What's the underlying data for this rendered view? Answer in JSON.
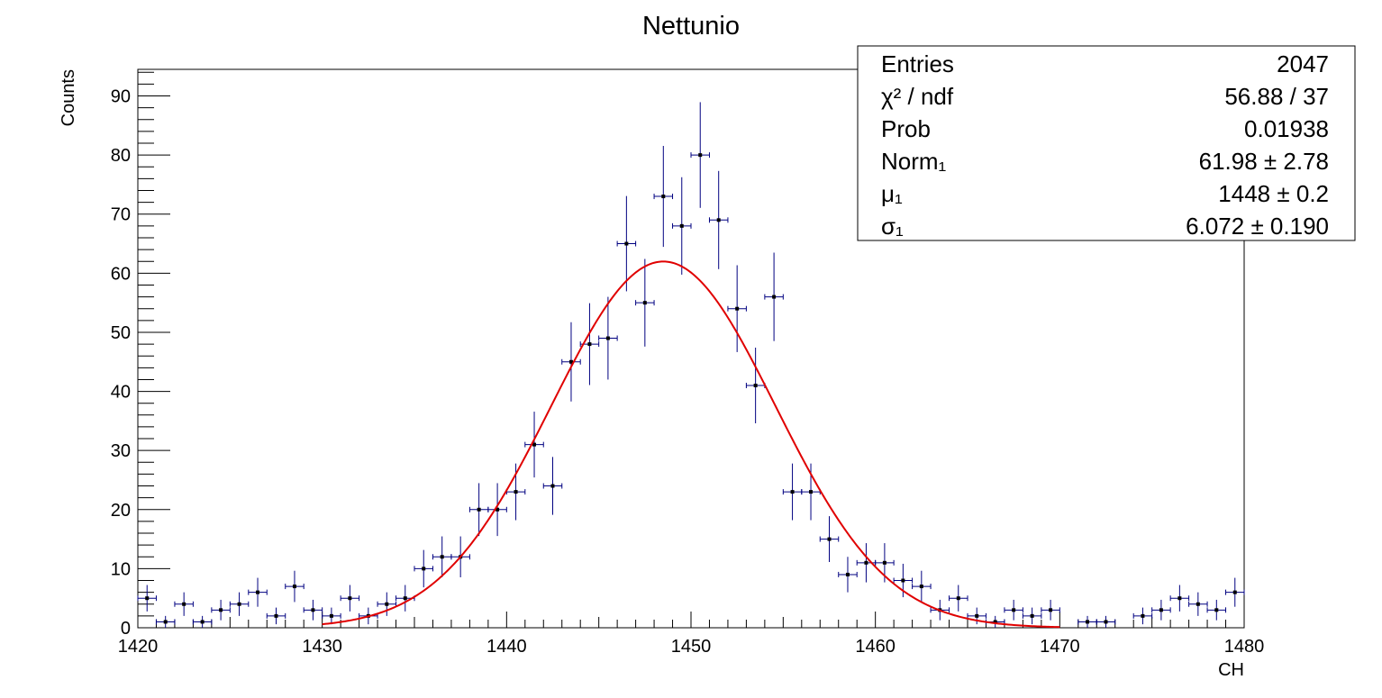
{
  "chart_data": {
    "type": "scatter",
    "title": "Nettunio",
    "xlabel": "CH",
    "ylabel": "Counts",
    "xlim": [
      1420,
      1480
    ],
    "ylim": [
      0,
      94.5
    ],
    "x_ticks": [
      1420,
      1430,
      1440,
      1450,
      1460,
      1470,
      1480
    ],
    "y_ticks": [
      0,
      10,
      20,
      30,
      40,
      50,
      60,
      70,
      80,
      90
    ],
    "x_ticks_labels": [
      "1420",
      "1430",
      "1440",
      "1450",
      "1460",
      "1470",
      "1480"
    ],
    "y_ticks_labels": [
      "0",
      "10",
      "20",
      "30",
      "40",
      "50",
      "60",
      "70",
      "80",
      "90"
    ],
    "bin_width": 1,
    "series": [
      {
        "kind": "histogram-points-with-errors",
        "color": "#000080",
        "x": [
          1420.5,
          1421.5,
          1422.5,
          1423.5,
          1424.5,
          1425.5,
          1426.5,
          1427.5,
          1428.5,
          1429.5,
          1430.5,
          1431.5,
          1432.5,
          1433.5,
          1434.5,
          1435.5,
          1436.5,
          1437.5,
          1438.5,
          1439.5,
          1440.5,
          1441.5,
          1442.5,
          1443.5,
          1444.5,
          1445.5,
          1446.5,
          1447.5,
          1448.5,
          1449.5,
          1450.5,
          1451.5,
          1452.5,
          1453.5,
          1454.5,
          1455.5,
          1456.5,
          1457.5,
          1458.5,
          1459.5,
          1460.5,
          1461.5,
          1462.5,
          1463.5,
          1464.5,
          1465.5,
          1466.5,
          1467.5,
          1468.5,
          1469.5,
          1470.5,
          1471.5,
          1472.5,
          1473.5,
          1474.5,
          1475.5,
          1476.5,
          1477.5,
          1478.5,
          1479.5
        ],
        "y": [
          5,
          1,
          4,
          1,
          3,
          4,
          6,
          2,
          7,
          3,
          2,
          5,
          2,
          4,
          5,
          10,
          12,
          12,
          20,
          20,
          23,
          31,
          24,
          45,
          48,
          49,
          65,
          55,
          73,
          68,
          80,
          69,
          54,
          41,
          56,
          23,
          23,
          15,
          9,
          11,
          11,
          8,
          7,
          3,
          5,
          2,
          1,
          3,
          2,
          3,
          0,
          1,
          1,
          0,
          2,
          3,
          5,
          4,
          3,
          6
        ]
      },
      {
        "kind": "gaussian-fit",
        "color": "#e00000",
        "norm": 61.98,
        "mean": 1448.5,
        "sigma": 6.072,
        "range": [
          1430,
          1470
        ]
      }
    ],
    "stats_box": {
      "rows": [
        {
          "label": "Entries",
          "value": "2047"
        },
        {
          "label": "χ² / ndf",
          "value": "56.88 / 37"
        },
        {
          "label": "Prob",
          "value": "0.01938"
        },
        {
          "label": "Norm₁",
          "value": "61.98 ± 2.78"
        },
        {
          "label": "μ₁",
          "value": "1448 ± 0.2"
        },
        {
          "label": "σ₁",
          "value": "6.072 ± 0.190"
        }
      ]
    }
  }
}
